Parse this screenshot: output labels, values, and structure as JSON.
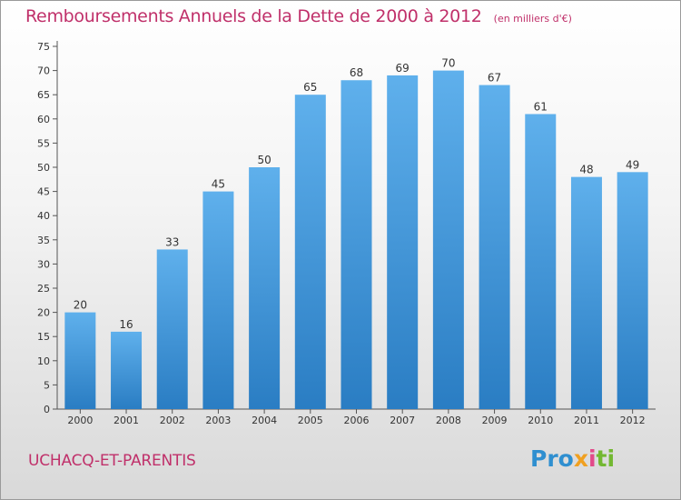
{
  "chart_data": {
    "type": "bar",
    "title": "Remboursements Annuels de la Dette de 2000 à 2012",
    "subtitle": "(en milliers d'€)",
    "categories": [
      "2000",
      "2001",
      "2002",
      "2003",
      "2004",
      "2005",
      "2006",
      "2007",
      "2008",
      "2009",
      "2010",
      "2011",
      "2012"
    ],
    "values": [
      20,
      16,
      33,
      45,
      50,
      65,
      68,
      69,
      70,
      67,
      61,
      48,
      49
    ],
    "ylim": [
      0,
      75
    ],
    "yticks": [
      0,
      5,
      10,
      15,
      20,
      25,
      30,
      35,
      40,
      45,
      50,
      55,
      60,
      65,
      70,
      75
    ],
    "xlabel": "",
    "ylabel": "",
    "grid": false,
    "bar_color": "#4a9de0"
  },
  "footer": {
    "commune": "UCHACQ-ET-PARENTIS",
    "logo_parts": [
      "Pro",
      "x",
      "i",
      "ti"
    ]
  }
}
